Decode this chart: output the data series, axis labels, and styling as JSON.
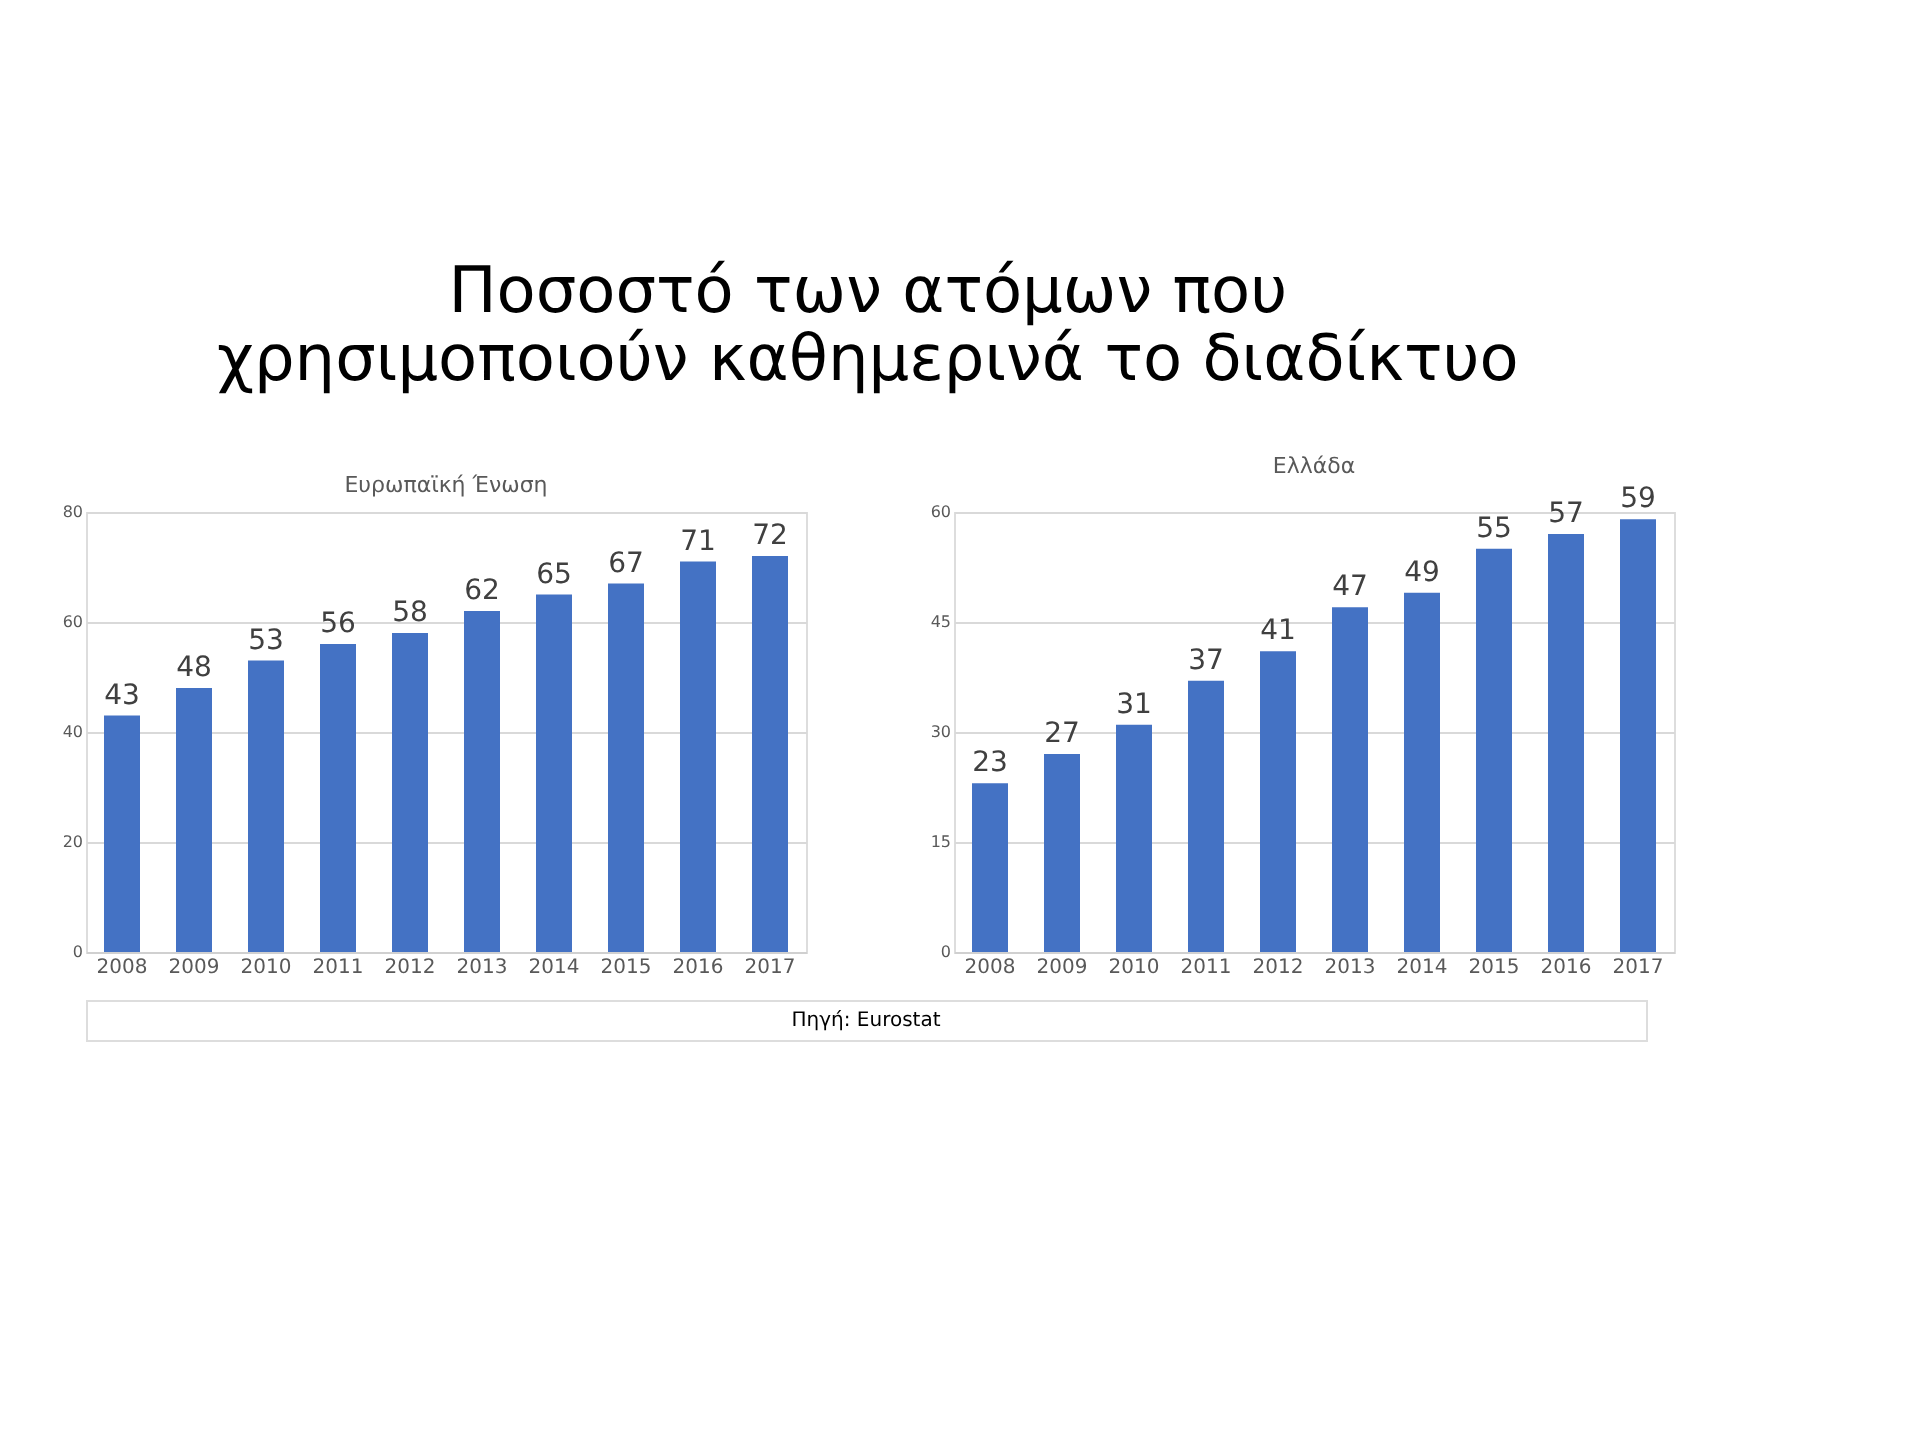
{
  "chart_data": [
    {
      "type": "bar",
      "title": "Ευρωπαϊκή Ένωση",
      "annotations": [
        "Ποσοστό των ατόμων που χρησιμοποιούν καθημερινά το διαδίκτυο"
      ],
      "categories": [
        "2008",
        "2009",
        "2010",
        "2011",
        "2012",
        "2013",
        "2014",
        "2015",
        "2016",
        "2017"
      ],
      "values": [
        43,
        48,
        53,
        56,
        58,
        62,
        65,
        67,
        71,
        72
      ],
      "color": "#4472c4",
      "ylim": [
        0,
        80
      ],
      "yticks": [
        0,
        20,
        40,
        60,
        80
      ],
      "grid": "y",
      "data_labels": true
    },
    {
      "type": "bar",
      "title": "Ελλάδα",
      "annotations": [
        "Πηγή: Eurostat"
      ],
      "categories": [
        "2008",
        "2009",
        "2010",
        "2011",
        "2012",
        "2013",
        "2014",
        "2015",
        "2016",
        "2017"
      ],
      "values": [
        23,
        27,
        31,
        37,
        41,
        47,
        49,
        55,
        57,
        59
      ],
      "color": "#4472c4",
      "ylim": [
        0,
        60
      ],
      "yticks": [
        0,
        15,
        30,
        45,
        60
      ],
      "grid": "y",
      "data_labels": true
    }
  ]
}
